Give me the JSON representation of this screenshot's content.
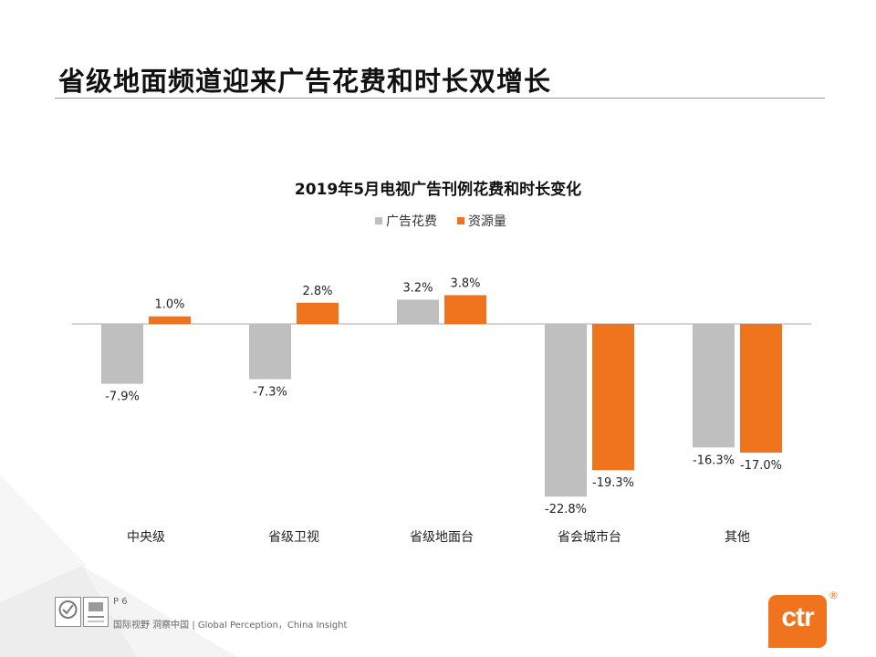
{
  "page": {
    "title": "省级地面频道迎来广告花费和时长双增长",
    "page_number": "P 6",
    "slogan": "国际视野 洞察中国 | Global Perception，China Insight",
    "logo": "ctr",
    "logo_mark": "®",
    "accent": "#f0731e"
  },
  "chart_data": {
    "type": "bar",
    "title": "2019年5月电视广告刊例花费和时长变化",
    "categories": [
      "中央级",
      "省级卫视",
      "省级地面台",
      "省会城市台",
      "其他"
    ],
    "series": [
      {
        "name": "广告花费",
        "color": "#bfbfbf",
        "values": [
          -7.9,
          -7.3,
          3.2,
          -22.8,
          -16.3
        ],
        "labels": [
          "-7.9%",
          "-7.3%",
          "3.2%",
          "-22.8%",
          "-16.3%"
        ]
      },
      {
        "name": "资源量",
        "color": "#f0731e",
        "values": [
          1.0,
          2.8,
          3.8,
          -19.3,
          -17.0
        ],
        "labels": [
          "1.0%",
          "2.8%",
          "3.8%",
          "-19.3%",
          "-17.0%"
        ]
      }
    ],
    "unit": "%",
    "legend_position": "top-center",
    "grid": false
  }
}
